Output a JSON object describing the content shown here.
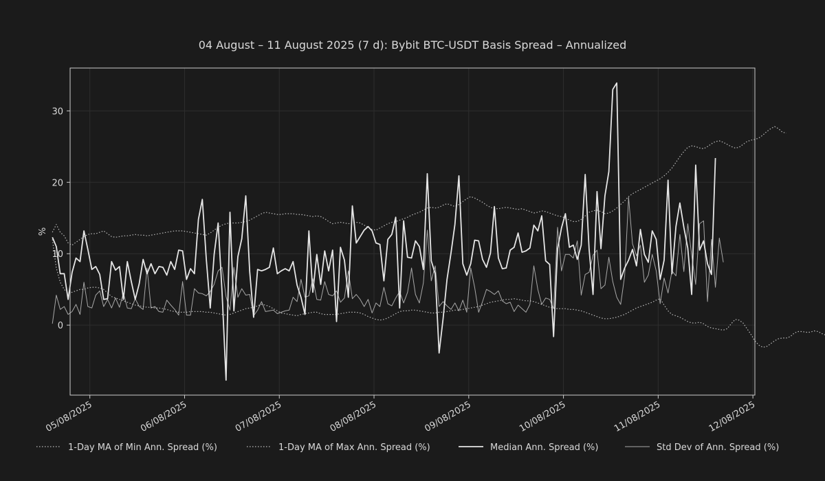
{
  "chart_data": {
    "type": "line",
    "title": "04 August – 11 August 2025 (7 d): Bybit BTC-USDT Basis Spread – Annualized",
    "xlabel": "",
    "ylabel": "%",
    "x_range": [
      "2025-08-04T19:00",
      "2025-08-12T00:30"
    ],
    "ylim": [
      -9.8,
      36.0
    ],
    "x_ticks": [
      {
        "date": "2025-08-05",
        "label": "05/08/2025"
      },
      {
        "date": "2025-08-06",
        "label": "06/08/2025"
      },
      {
        "date": "2025-08-07",
        "label": "07/08/2025"
      },
      {
        "date": "2025-08-08",
        "label": "08/08/2025"
      },
      {
        "date": "2025-08-09",
        "label": "09/08/2025"
      },
      {
        "date": "2025-08-10",
        "label": "10/08/2025"
      },
      {
        "date": "2025-08-11",
        "label": "11/08/2025"
      },
      {
        "date": "2025-08-12",
        "label": "12/08/2025"
      }
    ],
    "y_ticks": [
      {
        "value": 0,
        "label": "0"
      },
      {
        "value": 10,
        "label": "10"
      },
      {
        "value": 20,
        "label": "20"
      },
      {
        "value": 30,
        "label": "30"
      }
    ],
    "x_start": "2025-08-04T14:30",
    "x_step_hours": 1,
    "grid": true,
    "legend_position": "bottom",
    "colors": {
      "background": "#1b1b1b",
      "frame": "#cccccc",
      "line": "#d9d9d9",
      "grid": "#2e2e2e"
    },
    "series": [
      {
        "name": "1-Day MA of Min Ann. Spread (%)",
        "style": "dotted",
        "values": [
          12.0,
          8.0,
          6.0,
          5.0,
          4.5,
          4.6,
          4.8,
          5.0,
          5.0,
          5.2,
          5.3,
          5.3,
          5.2,
          5.0,
          4.5,
          4.0,
          3.8,
          3.6,
          3.4,
          3.2,
          3.0,
          2.8,
          2.7,
          2.6,
          2.5,
          2.5,
          2.4,
          2.4,
          2.3,
          2.2,
          2.0,
          1.9,
          1.8,
          1.8,
          1.8,
          1.9,
          1.9,
          1.9,
          1.9,
          1.8,
          1.8,
          1.7,
          1.6,
          1.5,
          1.4,
          1.5,
          1.7,
          1.9,
          2.1,
          2.3,
          2.4,
          2.5,
          2.7,
          2.9,
          2.8,
          2.6,
          2.3,
          2.0,
          1.7,
          1.6,
          1.5,
          1.4,
          1.3,
          1.5,
          1.6,
          1.7,
          1.8,
          1.8,
          1.6,
          1.5,
          1.5,
          1.5,
          1.5,
          1.6,
          1.7,
          1.8,
          1.8,
          1.8,
          1.7,
          1.5,
          1.2,
          1.0,
          0.8,
          0.7,
          0.8,
          1.0,
          1.3,
          1.6,
          1.9,
          2.0,
          2.0,
          2.1,
          2.1,
          2.0,
          1.9,
          1.8,
          1.7,
          1.7,
          1.8,
          1.8,
          1.9,
          2.0,
          2.1,
          2.1,
          2.2,
          2.3,
          2.4,
          2.5,
          2.6,
          2.8,
          3.0,
          3.2,
          3.3,
          3.4,
          3.5,
          3.6,
          3.6,
          3.7,
          3.6,
          3.5,
          3.4,
          3.4,
          3.3,
          3.1,
          2.9,
          2.7,
          2.5,
          2.4,
          2.3,
          2.3,
          2.3,
          2.2,
          2.2,
          2.1,
          2.0,
          1.8,
          1.6,
          1.4,
          1.2,
          1.0,
          0.9,
          0.9,
          1.0,
          1.1,
          1.3,
          1.5,
          1.8,
          2.1,
          2.4,
          2.6,
          2.8,
          3.0,
          3.2,
          3.5,
          3.7,
          2.8,
          2.0,
          1.5,
          1.3,
          1.1,
          0.8,
          0.5,
          0.3,
          0.3,
          0.4,
          0.2,
          -0.2,
          -0.4,
          -0.5,
          -0.6,
          -0.7,
          -0.5,
          0.2,
          0.8,
          0.7,
          0.3,
          -0.5,
          -1.3,
          -2.2,
          -2.8,
          -3.1,
          -3.0,
          -2.6,
          -2.2,
          -1.9,
          -1.8,
          -1.8,
          -1.6,
          -1.1,
          -0.9,
          -0.9,
          -1.0,
          -1.0,
          -0.8,
          -0.9,
          -1.2,
          -1.4,
          -1.5,
          -2.0,
          -3.5,
          -4.2,
          -3.5
        ]
      },
      {
        "name": "1-Day MA of Max Ann. Spread (%)",
        "style": "dotted",
        "values": [
          13.0,
          14.1,
          13.0,
          12.5,
          11.5,
          11.2,
          11.6,
          12.0,
          12.4,
          12.7,
          12.8,
          12.8,
          13.0,
          13.2,
          12.8,
          12.4,
          12.3,
          12.4,
          12.5,
          12.5,
          12.6,
          12.7,
          12.6,
          12.6,
          12.5,
          12.6,
          12.7,
          12.8,
          12.9,
          13.0,
          13.1,
          13.2,
          13.2,
          13.2,
          13.1,
          13.0,
          12.9,
          12.8,
          12.7,
          12.6,
          12.9,
          13.3,
          13.7,
          14.0,
          14.2,
          14.3,
          14.3,
          14.3,
          14.4,
          14.5,
          14.7,
          15.0,
          15.3,
          15.6,
          15.8,
          15.7,
          15.6,
          15.5,
          15.5,
          15.6,
          15.6,
          15.6,
          15.5,
          15.5,
          15.4,
          15.3,
          15.2,
          15.3,
          15.2,
          14.9,
          14.5,
          14.2,
          14.3,
          14.4,
          14.3,
          14.2,
          14.3,
          14.4,
          14.3,
          14.0,
          13.7,
          13.4,
          13.3,
          13.6,
          13.9,
          14.2,
          14.4,
          14.5,
          14.7,
          14.9,
          15.1,
          15.4,
          15.6,
          15.8,
          16.1,
          16.4,
          16.5,
          16.4,
          16.5,
          16.8,
          17.0,
          16.8,
          16.6,
          16.9,
          17.3,
          17.7,
          18.0,
          17.8,
          17.5,
          17.2,
          16.8,
          16.5,
          16.3,
          16.3,
          16.4,
          16.5,
          16.4,
          16.3,
          16.2,
          16.3,
          16.1,
          15.9,
          15.7,
          15.8,
          16.0,
          15.9,
          15.7,
          15.5,
          15.3,
          15.2,
          15.0,
          14.7,
          14.5,
          14.5,
          14.8,
          15.3,
          15.8,
          16.0,
          16.1,
          15.9,
          15.6,
          15.7,
          16.0,
          16.4,
          16.9,
          17.4,
          18.0,
          18.4,
          18.7,
          19.0,
          19.3,
          19.6,
          19.9,
          20.2,
          20.5,
          20.9,
          21.4,
          22.0,
          22.8,
          23.6,
          24.3,
          24.9,
          25.1,
          25.0,
          24.8,
          24.7,
          25.0,
          25.4,
          25.7,
          25.8,
          25.6,
          25.3,
          25.0,
          24.8,
          24.9,
          25.3,
          25.7,
          25.9,
          26.0,
          26.2,
          26.6,
          27.1,
          27.5,
          27.8,
          27.5,
          27.0,
          26.9
        ]
      },
      {
        "name": "Median Ann. Spread (%)",
        "style": "solid-thick",
        "values": [
          12.3,
          11.0,
          7.2,
          7.2,
          3.6,
          7.4,
          9.4,
          8.9,
          13.2,
          10.6,
          7.8,
          8.2,
          7.1,
          3.6,
          3.7,
          8.9,
          7.7,
          8.2,
          3.6,
          8.9,
          6.1,
          3.6,
          5.8,
          9.2,
          7.2,
          8.6,
          7.2,
          8.2,
          8.1,
          7.0,
          8.9,
          7.8,
          10.5,
          10.4,
          6.4,
          7.9,
          7.2,
          14.8,
          17.6,
          9.2,
          2.4,
          9.9,
          14.3,
          4.6,
          -7.7,
          15.8,
          2.0,
          9.6,
          12.1,
          18.1,
          7.5,
          1.1,
          7.8,
          7.6,
          7.8,
          8.1,
          10.8,
          7.2,
          7.6,
          7.9,
          7.6,
          8.9,
          5.6,
          3.9,
          1.5,
          13.2,
          4.6,
          9.9,
          5.7,
          10.4,
          7.6,
          10.5,
          0.5,
          10.9,
          9.1,
          3.9,
          16.7,
          11.5,
          12.4,
          13.3,
          13.8,
          13.2,
          11.5,
          11.3,
          6.2,
          12.0,
          12.7,
          15.1,
          2.4,
          14.6,
          9.5,
          9.4,
          11.8,
          11.0,
          7.8,
          21.2,
          9.0,
          7.2,
          -3.9,
          0.9,
          6.4,
          10.1,
          14.1,
          20.9,
          8.6,
          7.0,
          8.6,
          11.9,
          11.8,
          9.2,
          8.1,
          10.1,
          16.6,
          9.4,
          7.9,
          8.0,
          10.5,
          10.9,
          12.9,
          10.2,
          10.4,
          10.8,
          14.0,
          13.2,
          15.3,
          9.0,
          8.5,
          -1.6,
          10.7,
          13.6,
          15.6,
          10.9,
          11.2,
          9.2,
          11.2,
          21.1,
          10.6,
          4.3,
          18.7,
          10.7,
          18.1,
          21.5,
          33.0,
          33.9,
          6.4,
          8.0,
          9.1,
          10.6,
          8.3,
          13.4,
          9.9,
          8.8,
          13.2,
          12.0,
          6.4,
          9.1,
          20.3,
          7.2,
          13.8,
          17.1,
          13.7,
          10.8,
          4.3,
          22.4,
          10.5,
          11.8,
          8.6,
          7.1,
          23.4
        ]
      },
      {
        "name": "Std Dev of Ann. Spread (%)",
        "style": "solid-thin",
        "values": [
          0.2,
          4.2,
          2.2,
          2.6,
          1.5,
          1.9,
          2.9,
          1.5,
          6.0,
          2.6,
          2.4,
          4.2,
          4.8,
          2.6,
          3.6,
          2.4,
          3.8,
          2.5,
          4.5,
          2.4,
          2.3,
          3.7,
          2.6,
          2.2,
          8.0,
          2.4,
          2.6,
          1.9,
          1.8,
          3.5,
          2.8,
          2.2,
          1.4,
          6.1,
          1.4,
          1.4,
          5.1,
          4.5,
          4.4,
          4.1,
          4.7,
          5.7,
          7.6,
          8.1,
          4.0,
          2.1,
          8.1,
          3.9,
          5.1,
          4.2,
          4.3,
          1.3,
          2.1,
          3.3,
          1.9,
          2.0,
          2.1,
          1.6,
          1.8,
          2.0,
          2.1,
          3.9,
          3.3,
          6.4,
          3.9,
          4.1,
          6.5,
          3.6,
          3.5,
          6.1,
          4.3,
          4.1,
          4.8,
          3.2,
          3.8,
          7.6,
          3.7,
          4.3,
          3.6,
          2.6,
          3.6,
          1.7,
          3.1,
          2.6,
          5.3,
          3.0,
          2.7,
          3.8,
          4.7,
          3.1,
          4.6,
          8.0,
          4.3,
          3.1,
          5.9,
          13.3,
          6.2,
          8.3,
          2.6,
          3.3,
          2.7,
          2.2,
          3.1,
          2.0,
          3.5,
          1.8,
          8.0,
          5.3,
          1.8,
          3.3,
          5.0,
          4.7,
          4.3,
          4.8,
          3.4,
          3.0,
          3.2,
          1.9,
          2.8,
          2.3,
          1.8,
          2.9,
          8.3,
          5.0,
          2.9,
          3.8,
          3.6,
          2.3,
          13.7,
          7.6,
          9.9,
          9.9,
          9.4,
          11.8,
          4.2,
          7.1,
          7.4,
          9.8,
          10.5,
          5.1,
          5.6,
          9.5,
          6.1,
          3.9,
          2.9,
          6.9,
          17.9,
          11.4,
          9.7,
          11.2,
          6.0,
          7.0,
          9.9,
          7.6,
          3.0,
          6.6,
          4.5,
          7.6,
          6.9,
          12.7,
          7.5,
          14.2,
          9.8,
          5.7,
          14.2,
          14.6,
          3.3,
          12.0,
          5.3,
          12.2,
          8.8
        ]
      }
    ]
  }
}
